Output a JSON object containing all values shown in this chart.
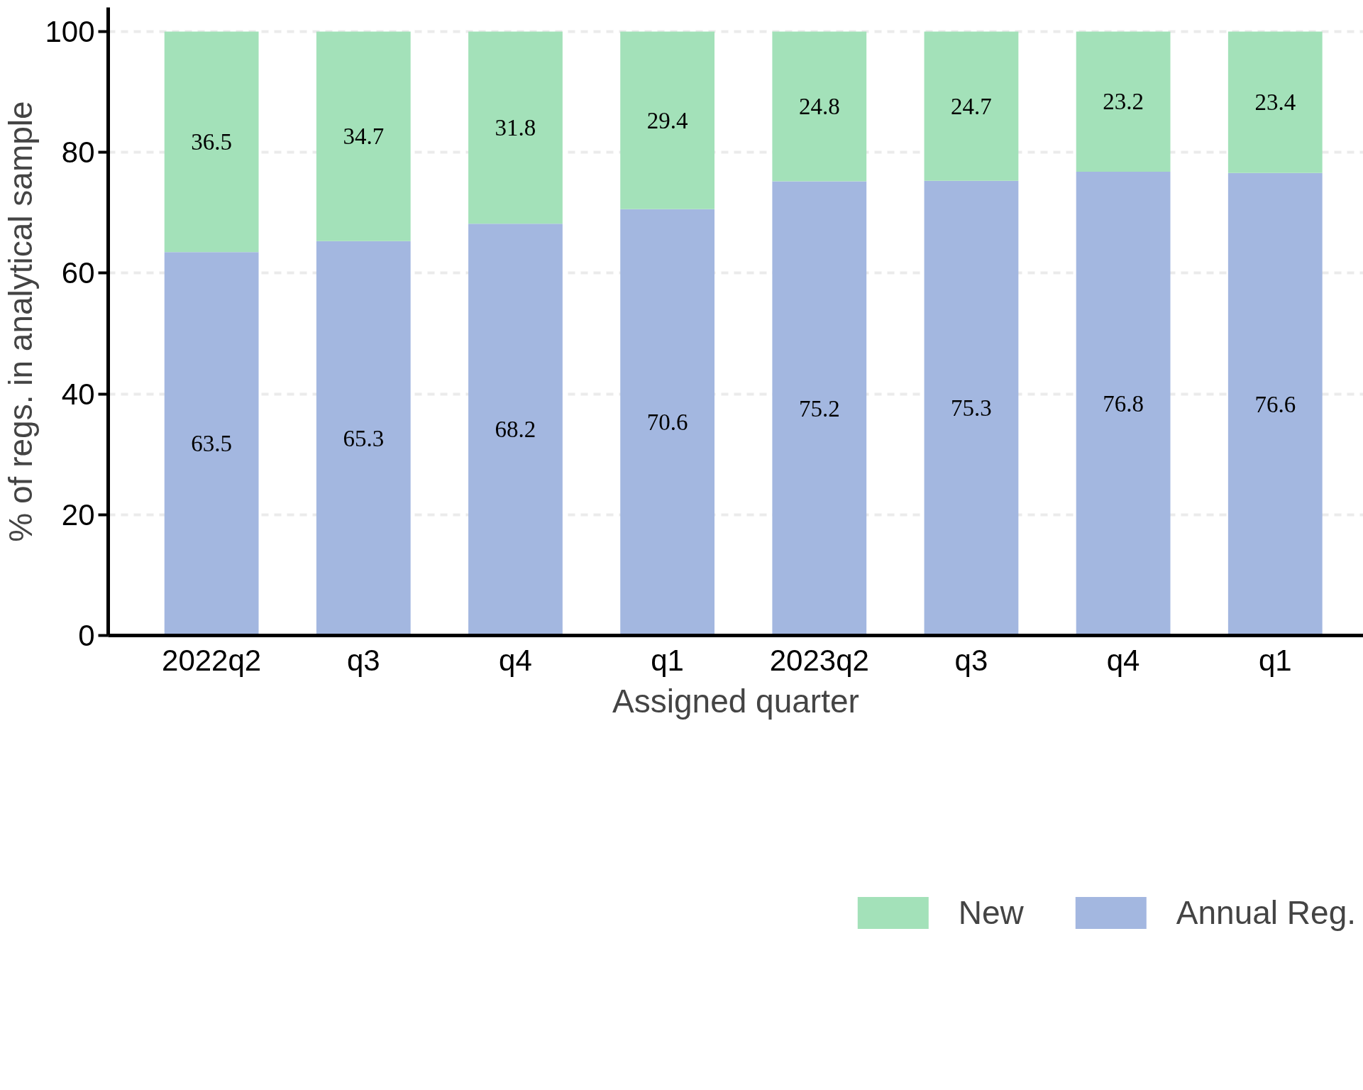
{
  "chart_data": {
    "type": "bar",
    "stacked": true,
    "xlabel": "Assigned quarter",
    "ylabel": "% of regs. in analytical sample",
    "categories": [
      "2022q2",
      "q3",
      "q4",
      "q1",
      "2023q2",
      "q3",
      "q4",
      "q1"
    ],
    "series": [
      {
        "name": "Annual Reg.",
        "color": "#a3b7e0",
        "values": [
          63.5,
          65.3,
          68.2,
          70.6,
          75.2,
          75.3,
          76.8,
          76.6
        ]
      },
      {
        "name": "New",
        "color": "#a3e1b9",
        "values": [
          36.5,
          34.7,
          31.8,
          29.4,
          24.8,
          24.7,
          23.2,
          23.4
        ]
      }
    ],
    "ylim": [
      0,
      104
    ],
    "yticks": [
      0,
      20,
      40,
      60,
      80,
      100
    ],
    "grid": "y",
    "legend": "bottom",
    "data_labels": true
  }
}
